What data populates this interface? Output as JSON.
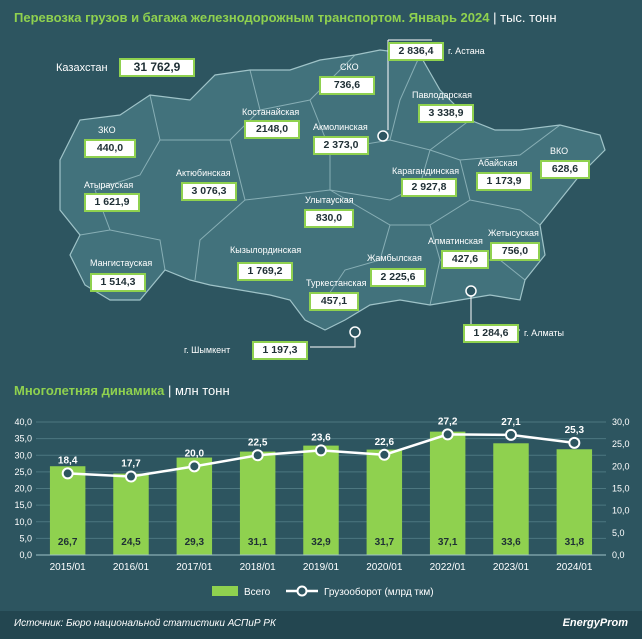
{
  "map": {
    "title": "Перевозка грузов и багажа железнодорожным транспортом. Январь 2024",
    "unit": "тыс. тонн",
    "kazakhstan": {
      "label": "Казахстан",
      "value": "31 762,9"
    },
    "regions": [
      {
        "name": "СКО",
        "value": "736,6"
      },
      {
        "name": "г. Астана",
        "value": "2 836,4"
      },
      {
        "name": "Павлодарская",
        "value": "3 338,9"
      },
      {
        "name": "Костанайская",
        "value": "2148,0"
      },
      {
        "name": "Акмолинская",
        "value": "2 373,0"
      },
      {
        "name": "ЗКО",
        "value": "440,0"
      },
      {
        "name": "Актюбинская",
        "value": "3 076,3"
      },
      {
        "name": "ВКО",
        "value": "628,6"
      },
      {
        "name": "Атырауская",
        "value": "1 621,9"
      },
      {
        "name": "Карагандинская",
        "value": "2 927,8"
      },
      {
        "name": "Абайская",
        "value": "1 173,9"
      },
      {
        "name": "Улытауская",
        "value": "830,0"
      },
      {
        "name": "Жетысуская",
        "value": "756,0"
      },
      {
        "name": "Алматинская",
        "value": "427,6"
      },
      {
        "name": "Кызылординская",
        "value": "1 769,2"
      },
      {
        "name": "Жамбылская",
        "value": "2 225,6"
      },
      {
        "name": "Мангистауская",
        "value": "1 514,3"
      },
      {
        "name": "Туркестанская",
        "value": "457,1"
      },
      {
        "name": "г. Алматы",
        "value": "1 284,6"
      },
      {
        "name": "г. Шымкент",
        "value": "1 197,3"
      }
    ]
  },
  "chart_section": {
    "title": "Многолетняя динамика",
    "unit": "млн тонн"
  },
  "chart_data": {
    "type": "bar",
    "categories": [
      "2015/01",
      "2016/01",
      "2017/01",
      "2018/01",
      "2019/01",
      "2020/01",
      "2022/01",
      "2023/01",
      "2024/01"
    ],
    "series": [
      {
        "name": "Всего",
        "type": "bar",
        "axis": "left",
        "values": [
          26.7,
          24.5,
          29.3,
          31.1,
          32.9,
          31.7,
          37.1,
          33.6,
          31.8
        ],
        "labels": [
          "26,7",
          "24,5",
          "29,3",
          "31,1",
          "32,9",
          "31,7",
          "37,1",
          "33,6",
          "31,8"
        ]
      },
      {
        "name": "Грузооборот (млрд ткм)",
        "type": "line",
        "axis": "right",
        "values": [
          18.4,
          17.7,
          20.0,
          22.5,
          23.6,
          22.6,
          27.2,
          27.1,
          25.3
        ],
        "labels": [
          "18,4",
          "17,7",
          "20,0",
          "22,5",
          "23,6",
          "22,6",
          "27,2",
          "27,1",
          "25,3"
        ]
      }
    ],
    "y_left": {
      "range": [
        0,
        40
      ],
      "ticks": [
        "0,0",
        "5,0",
        "10,0",
        "15,0",
        "20,0",
        "25,0",
        "30,0",
        "35,0",
        "40,0"
      ]
    },
    "y_right": {
      "range": [
        0,
        30
      ],
      "ticks": [
        "0,0",
        "5,0",
        "10,0",
        "15,0",
        "20,0",
        "25,0",
        "30,0"
      ]
    },
    "legend_position": "bottom",
    "colors": {
      "bar": "#8fd14f",
      "line": "#ffffff",
      "accent": "#8fd14f",
      "background": "#2d5560"
    }
  },
  "footer": {
    "source": "Источник: Бюро национальной статистики АСПиР РК",
    "brand": "EnergyProm"
  }
}
